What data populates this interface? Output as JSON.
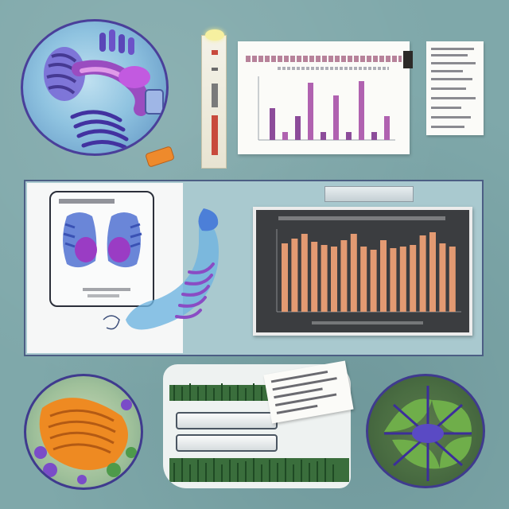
{
  "corner_label": "",
  "mid_caption_left": "",
  "mid_caption_right": "",
  "bottom_left_label": "",
  "bottom_right_label": "",
  "colors": {
    "background": "#7fa8aa",
    "panel_border": "#4c5e84",
    "top_bars": "#8c4c9a",
    "dark_chart_bars": "#e39a72",
    "dark_chart_bg": "#3b3d40"
  },
  "icons": [
    "lung-anatomy-icon",
    "spine-icon",
    "leaf-icon",
    "forest-icon",
    "thermometer-icon"
  ]
}
